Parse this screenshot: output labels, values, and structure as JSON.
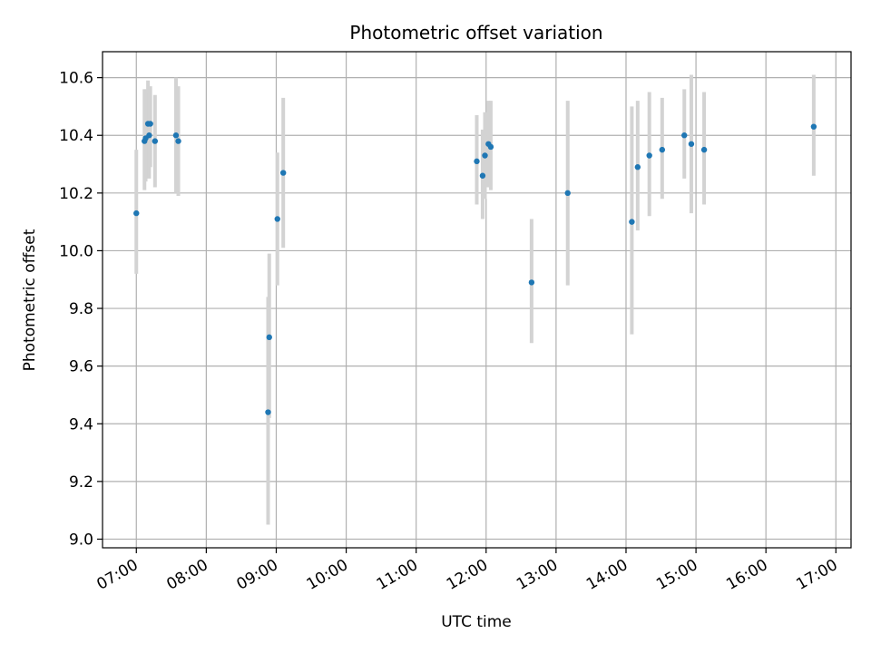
{
  "chart_data": {
    "type": "scatter",
    "title": "Photometric offset variation",
    "xlabel": "UTC time",
    "ylabel": "Photometric offset",
    "grid": true,
    "xlim": [
      "06:31",
      "17:13"
    ],
    "ylim": [
      8.97,
      10.69
    ],
    "x_ticks": [
      "07:00",
      "08:00",
      "09:00",
      "10:00",
      "11:00",
      "12:00",
      "13:00",
      "14:00",
      "15:00",
      "16:00",
      "17:00"
    ],
    "y_ticks": [
      "9.0",
      "9.2",
      "9.4",
      "9.6",
      "9.8",
      "10.0",
      "10.2",
      "10.4",
      "10.6"
    ],
    "colors": {
      "point": "#1f77b4",
      "errorbar": "#d3d3d3",
      "grid": "#b0b0b0"
    },
    "points": [
      {
        "x": "07:00",
        "y": 10.13,
        "ylow": 9.92,
        "yhigh": 10.35
      },
      {
        "x": "07:07",
        "y": 10.38,
        "ylow": 10.21,
        "yhigh": 10.56
      },
      {
        "x": "07:08",
        "y": 10.39,
        "ylow": 10.24,
        "yhigh": 10.56
      },
      {
        "x": "07:10",
        "y": 10.44,
        "ylow": 10.31,
        "yhigh": 10.59
      },
      {
        "x": "07:11",
        "y": 10.4,
        "ylow": 10.25,
        "yhigh": 10.55
      },
      {
        "x": "07:12",
        "y": 10.44,
        "ylow": 10.29,
        "yhigh": 10.57
      },
      {
        "x": "07:16",
        "y": 10.38,
        "ylow": 10.22,
        "yhigh": 10.54
      },
      {
        "x": "07:34",
        "y": 10.4,
        "ylow": 10.2,
        "yhigh": 10.6
      },
      {
        "x": "07:36",
        "y": 10.38,
        "ylow": 10.19,
        "yhigh": 10.57
      },
      {
        "x": "08:53",
        "y": 9.44,
        "ylow": 9.05,
        "yhigh": 9.84
      },
      {
        "x": "08:54",
        "y": 9.7,
        "ylow": 9.42,
        "yhigh": 9.99
      },
      {
        "x": "09:01",
        "y": 10.11,
        "ylow": 9.88,
        "yhigh": 10.34
      },
      {
        "x": "09:06",
        "y": 10.27,
        "ylow": 10.01,
        "yhigh": 10.53
      },
      {
        "x": "11:52",
        "y": 10.31,
        "ylow": 10.16,
        "yhigh": 10.47
      },
      {
        "x": "11:57",
        "y": 10.26,
        "ylow": 10.11,
        "yhigh": 10.42
      },
      {
        "x": "11:59",
        "y": 10.33,
        "ylow": 10.18,
        "yhigh": 10.48
      },
      {
        "x": "12:02",
        "y": 10.37,
        "ylow": 10.22,
        "yhigh": 10.52
      },
      {
        "x": "12:04",
        "y": 10.36,
        "ylow": 10.21,
        "yhigh": 10.52
      },
      {
        "x": "12:39",
        "y": 9.89,
        "ylow": 9.68,
        "yhigh": 10.11
      },
      {
        "x": "13:10",
        "y": 10.2,
        "ylow": 9.88,
        "yhigh": 10.52
      },
      {
        "x": "14:05",
        "y": 10.1,
        "ylow": 9.71,
        "yhigh": 10.5
      },
      {
        "x": "14:10",
        "y": 10.29,
        "ylow": 10.07,
        "yhigh": 10.52
      },
      {
        "x": "14:20",
        "y": 10.33,
        "ylow": 10.12,
        "yhigh": 10.55
      },
      {
        "x": "14:31",
        "y": 10.35,
        "ylow": 10.18,
        "yhigh": 10.53
      },
      {
        "x": "14:50",
        "y": 10.4,
        "ylow": 10.25,
        "yhigh": 10.56
      },
      {
        "x": "14:56",
        "y": 10.37,
        "ylow": 10.13,
        "yhigh": 10.61
      },
      {
        "x": "15:07",
        "y": 10.35,
        "ylow": 10.16,
        "yhigh": 10.55
      },
      {
        "x": "16:41",
        "y": 10.43,
        "ylow": 10.26,
        "yhigh": 10.61
      }
    ]
  }
}
